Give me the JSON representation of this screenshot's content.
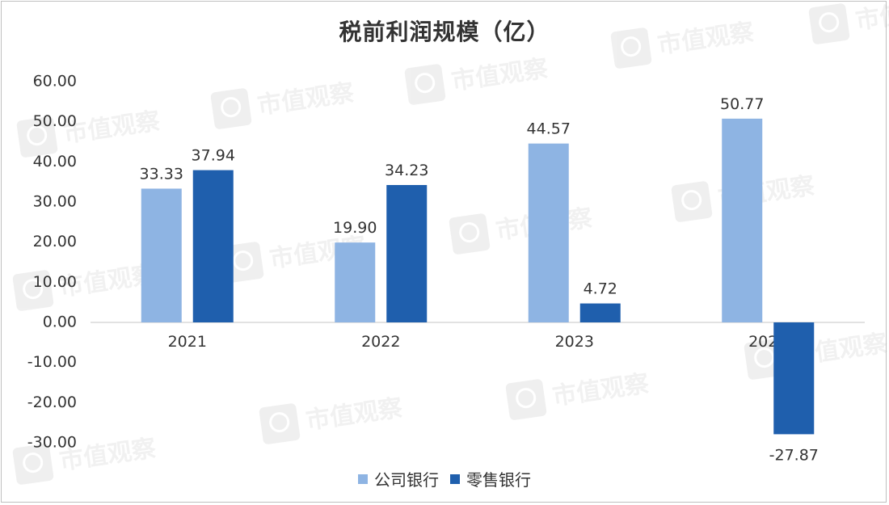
{
  "chart_data": {
    "type": "bar",
    "title": "税前利润规模（亿）",
    "categories": [
      "2021",
      "2022",
      "2023",
      "2024"
    ],
    "series": [
      {
        "name": "公司银行",
        "values": [
          33.33,
          19.9,
          44.57,
          50.77
        ],
        "color": "#8EB4E3"
      },
      {
        "name": "零售银行",
        "values": [
          37.94,
          34.23,
          4.72,
          -27.87
        ],
        "color": "#1F5FAD"
      }
    ],
    "data_labels": [
      [
        "33.33",
        "19.90",
        "44.57",
        "50.77"
      ],
      [
        "37.94",
        "34.23",
        "4.72",
        "-27.87"
      ]
    ],
    "y_ticks": [
      "60.00",
      "50.00",
      "40.00",
      "30.00",
      "20.00",
      "10.00",
      "0.00",
      "-10.00",
      "-20.00",
      "-30.00"
    ],
    "ylim": [
      -30,
      60
    ],
    "grid": false,
    "legend_position": "bottom",
    "xlabel": "",
    "ylabel": ""
  },
  "watermark": {
    "text": "市值观察"
  }
}
